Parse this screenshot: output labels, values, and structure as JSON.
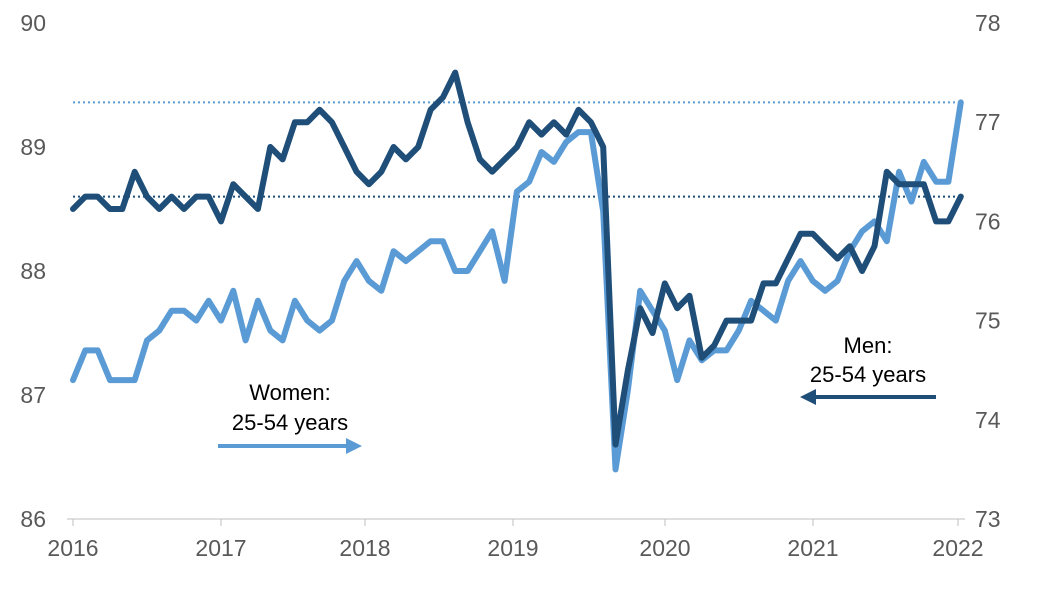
{
  "chart_data": {
    "type": "line",
    "title": "",
    "xlabel": "",
    "ylabel": "",
    "x_tick_labels": [
      "2016",
      "2017",
      "2018",
      "2019",
      "2020",
      "2021",
      "2022"
    ],
    "y_left": {
      "lim": [
        86,
        90
      ],
      "ticks": [
        "86",
        "87",
        "88",
        "89",
        "90"
      ]
    },
    "y_right": {
      "lim": [
        73,
        78
      ],
      "ticks": [
        "73",
        "74",
        "75",
        "76",
        "77",
        "78"
      ]
    },
    "grid": false,
    "series": [
      {
        "key": "men",
        "axis": "left",
        "color": "#1F4E79",
        "reference_value": 88.6,
        "values": [
          88.5,
          88.6,
          88.6,
          88.5,
          88.5,
          88.8,
          88.6,
          88.5,
          88.6,
          88.5,
          88.6,
          88.6,
          88.4,
          88.7,
          88.6,
          88.5,
          89.0,
          88.9,
          89.2,
          89.2,
          89.3,
          89.2,
          89.0,
          88.8,
          88.7,
          88.8,
          89.0,
          88.9,
          89.0,
          89.3,
          89.4,
          89.6,
          89.2,
          88.9,
          88.8,
          88.9,
          89.0,
          89.2,
          89.1,
          89.2,
          89.1,
          89.3,
          89.2,
          89.0,
          86.6,
          87.2,
          87.7,
          87.5,
          87.9,
          87.7,
          87.8,
          87.3,
          87.4,
          87.6,
          87.6,
          87.6,
          87.9,
          87.9,
          88.1,
          88.3,
          88.3,
          88.2,
          88.1,
          88.2,
          88.0,
          88.2,
          88.8,
          88.7,
          88.7,
          88.7,
          88.4,
          88.4,
          88.6
        ]
      },
      {
        "key": "women",
        "axis": "right",
        "color": "#5B9BD5",
        "reference_value": 77.2,
        "values": [
          74.4,
          74.7,
          74.7,
          74.4,
          74.4,
          74.4,
          74.8,
          74.9,
          75.1,
          75.1,
          75.0,
          75.2,
          75.0,
          75.3,
          74.8,
          75.2,
          74.9,
          74.8,
          75.2,
          75.0,
          74.9,
          75.0,
          75.4,
          75.6,
          75.4,
          75.3,
          75.7,
          75.6,
          75.7,
          75.8,
          75.8,
          75.5,
          75.5,
          75.7,
          75.9,
          75.4,
          76.3,
          76.4,
          76.7,
          76.6,
          76.8,
          76.9,
          76.9,
          76.1,
          73.5,
          74.3,
          75.3,
          75.1,
          74.9,
          74.4,
          74.8,
          74.6,
          74.7,
          74.7,
          74.9,
          75.2,
          75.1,
          75.0,
          75.4,
          75.6,
          75.4,
          75.3,
          75.4,
          75.7,
          75.9,
          76.0,
          75.8,
          76.5,
          76.2,
          76.6,
          76.4,
          76.4,
          77.2
        ]
      }
    ],
    "annotations": [
      {
        "key": "women",
        "lines": [
          "Women:",
          "25-54 years"
        ],
        "arrow": "right"
      },
      {
        "key": "men",
        "lines": [
          "Men:",
          "25-54 years"
        ],
        "arrow": "left"
      }
    ]
  }
}
